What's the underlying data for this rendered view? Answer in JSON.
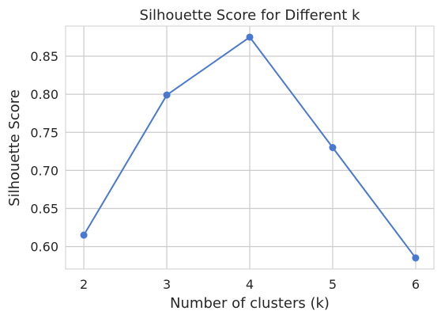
{
  "chart_data": {
    "type": "line",
    "title": "Silhouette Score for Different k",
    "xlabel": "Number of clusters (k)",
    "ylabel": "Silhouette Score",
    "x": [
      2,
      3,
      4,
      5,
      6
    ],
    "series": [
      {
        "name": "",
        "values": [
          0.615,
          0.799,
          0.875,
          0.73,
          0.585
        ]
      }
    ],
    "xticks": [
      "2",
      "3",
      "4",
      "5",
      "6"
    ],
    "yticks": [
      "0.60",
      "0.65",
      "0.70",
      "0.75",
      "0.80",
      "0.85"
    ],
    "xlim": [
      1.78,
      6.22
    ],
    "ylim": [
      0.5705,
      0.8895
    ],
    "grid": true,
    "line_color": "#4878d0",
    "grid_color": "#cccccc",
    "marker": "circle"
  }
}
